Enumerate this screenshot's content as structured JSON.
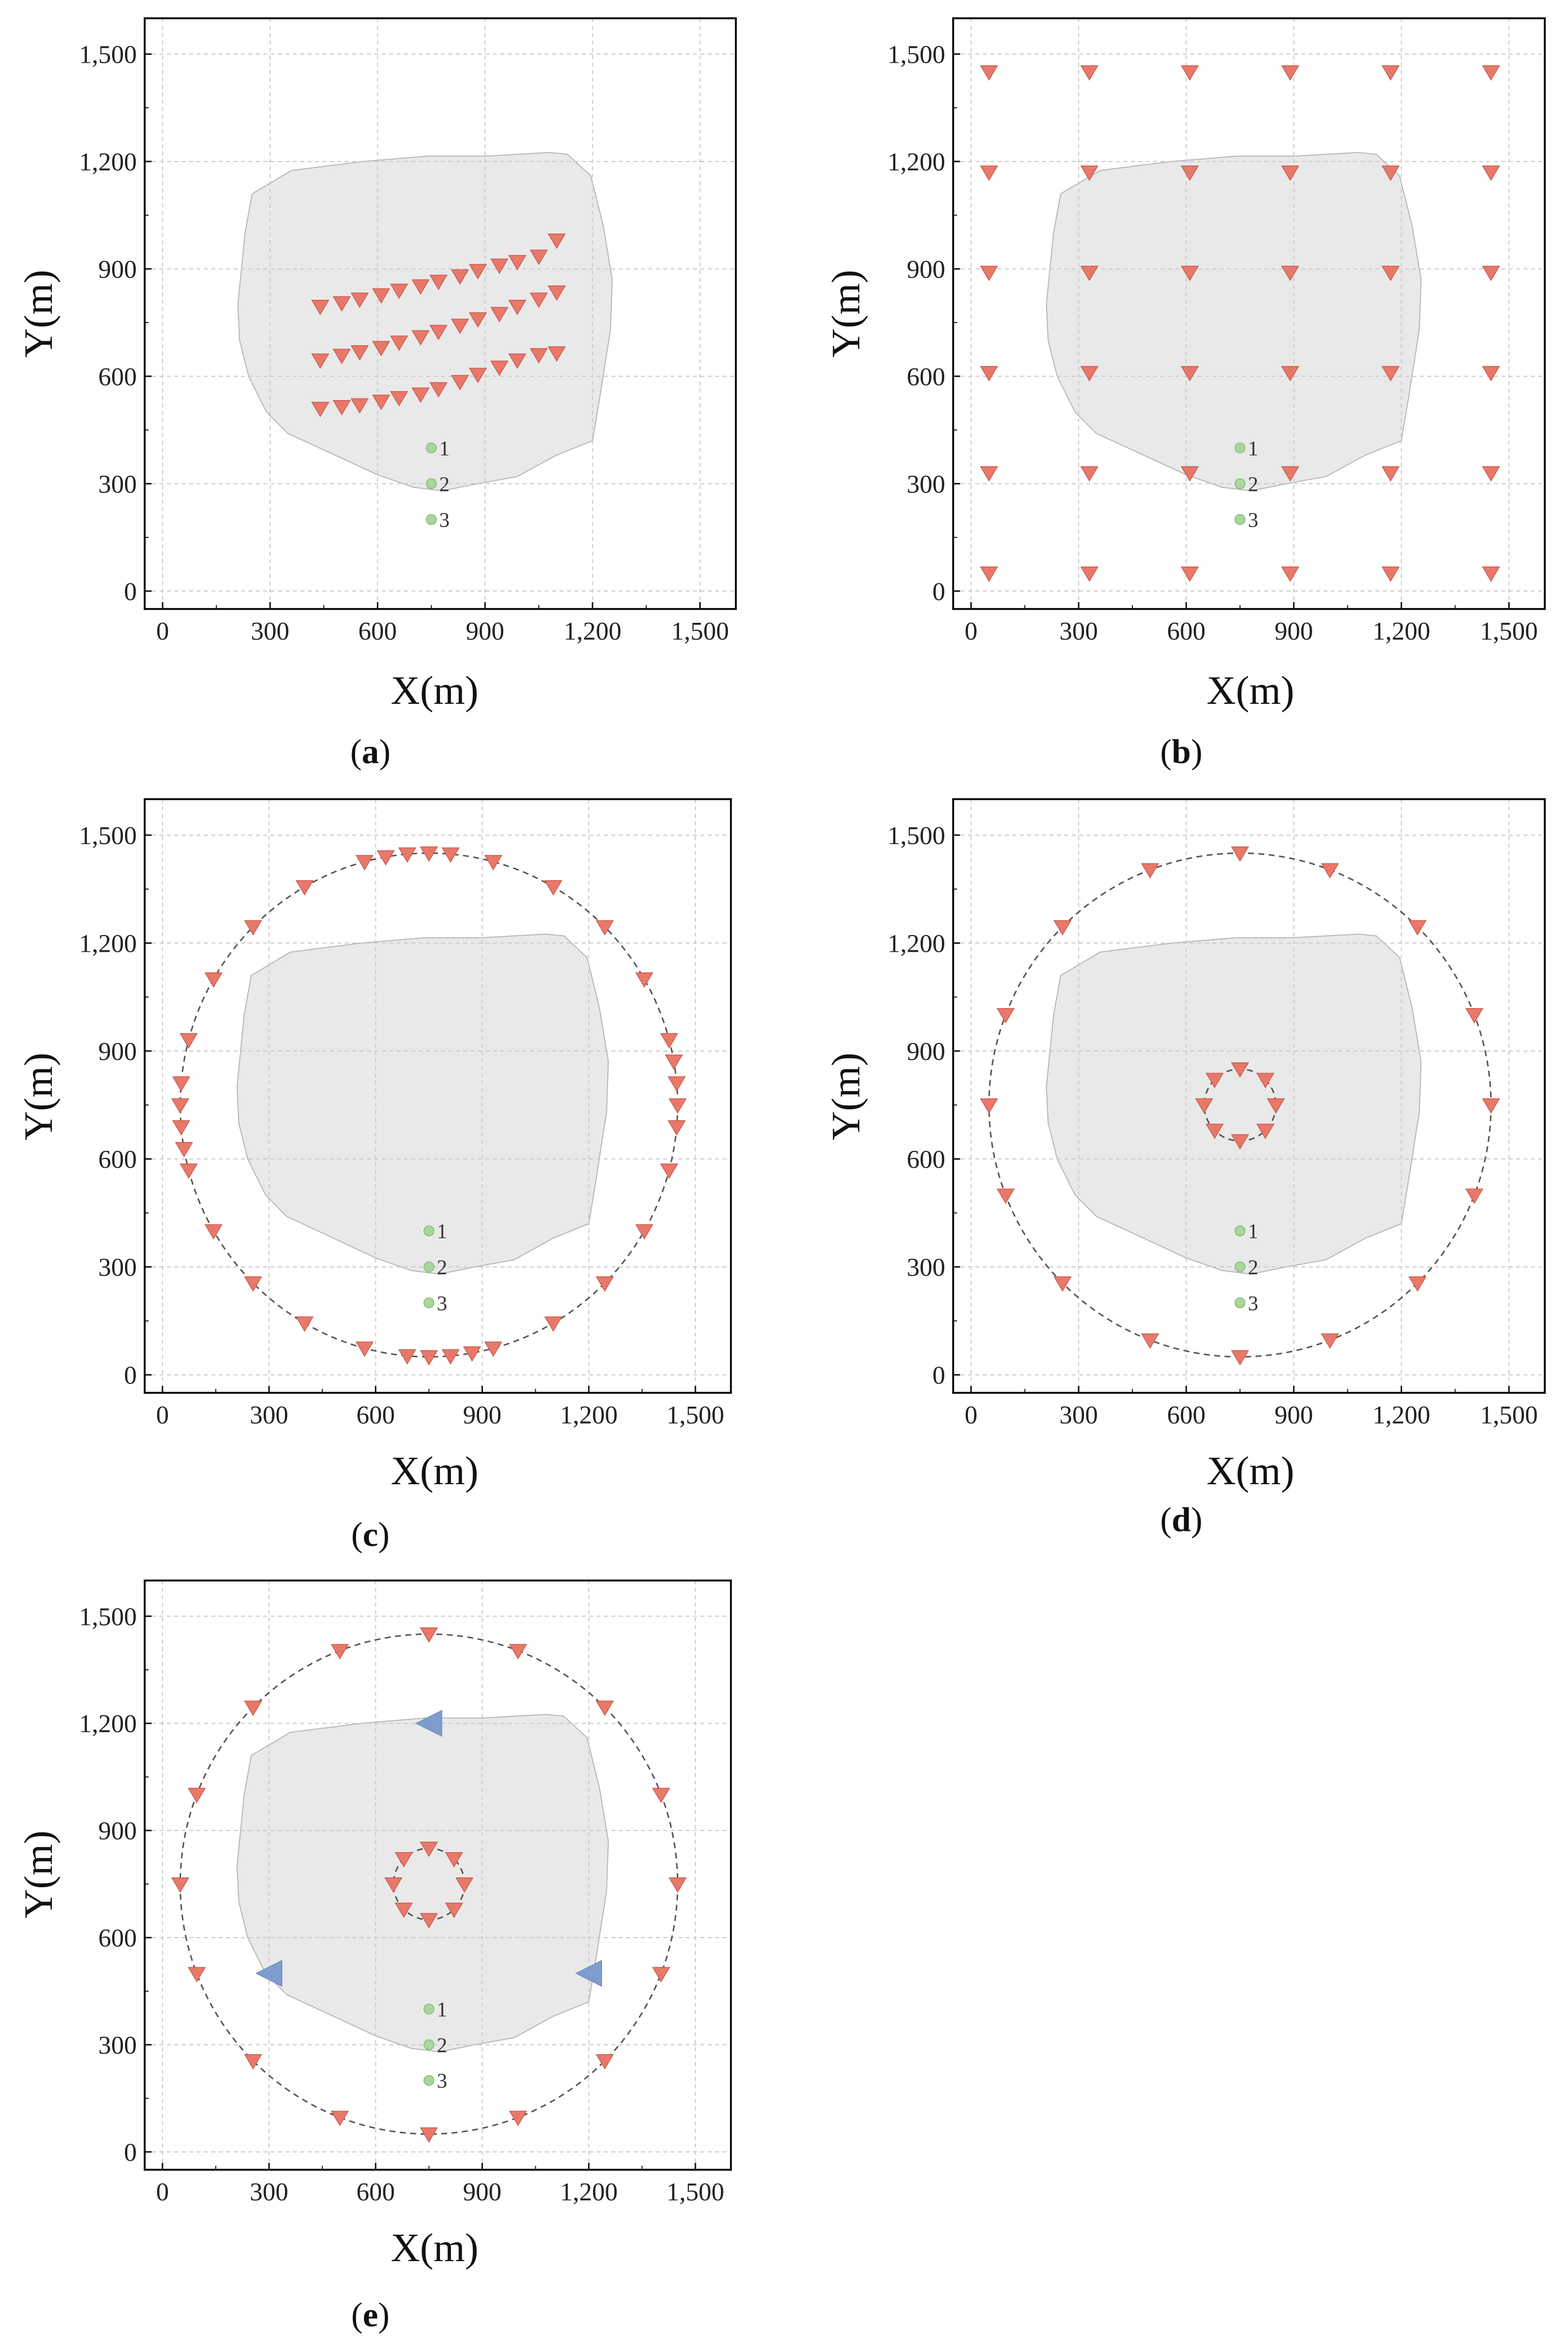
{
  "chart_data": [
    {
      "panel": "a",
      "type": "scatter",
      "xlabel": "X(m)",
      "ylabel": "Y(m)",
      "xlim": [
        -50,
        1600
      ],
      "ylim": [
        -50,
        1600
      ],
      "x_ticks": [
        0,
        300,
        600,
        900,
        1200,
        1500
      ],
      "y_ticks": [
        0,
        300,
        600,
        900,
        1200,
        1500
      ],
      "tick_labels": [
        "0",
        "300",
        "600",
        "900",
        "1,200",
        "1,500"
      ],
      "grid": true,
      "region": [
        [
          230,
          1000
        ],
        [
          250,
          1110
        ],
        [
          360,
          1175
        ],
        [
          560,
          1200
        ],
        [
          740,
          1215
        ],
        [
          900,
          1215
        ],
        [
          1080,
          1225
        ],
        [
          1130,
          1220
        ],
        [
          1195,
          1160
        ],
        [
          1230,
          1020
        ],
        [
          1255,
          870
        ],
        [
          1250,
          730
        ],
        [
          1220,
          540
        ],
        [
          1200,
          420
        ],
        [
          1100,
          380
        ],
        [
          990,
          320
        ],
        [
          880,
          300
        ],
        [
          780,
          280
        ],
        [
          700,
          290
        ],
        [
          600,
          325
        ],
        [
          470,
          385
        ],
        [
          350,
          440
        ],
        [
          290,
          500
        ],
        [
          240,
          600
        ],
        [
          215,
          700
        ],
        [
          210,
          800
        ],
        [
          220,
          900
        ]
      ],
      "receivers": [
        [
          440,
          795
        ],
        [
          500,
          805
        ],
        [
          550,
          815
        ],
        [
          610,
          827
        ],
        [
          660,
          840
        ],
        [
          720,
          852
        ],
        [
          770,
          865
        ],
        [
          830,
          880
        ],
        [
          880,
          895
        ],
        [
          940,
          910
        ],
        [
          990,
          920
        ],
        [
          1050,
          935
        ],
        [
          1100,
          980
        ],
        [
          440,
          645
        ],
        [
          500,
          658
        ],
        [
          550,
          668
        ],
        [
          610,
          680
        ],
        [
          660,
          695
        ],
        [
          720,
          710
        ],
        [
          770,
          725
        ],
        [
          830,
          742
        ],
        [
          880,
          760
        ],
        [
          940,
          775
        ],
        [
          990,
          795
        ],
        [
          1050,
          815
        ],
        [
          1100,
          835
        ],
        [
          440,
          510
        ],
        [
          500,
          515
        ],
        [
          550,
          520
        ],
        [
          610,
          530
        ],
        [
          660,
          540
        ],
        [
          720,
          550
        ],
        [
          770,
          565
        ],
        [
          830,
          585
        ],
        [
          880,
          605
        ],
        [
          940,
          625
        ],
        [
          990,
          645
        ],
        [
          1050,
          660
        ],
        [
          1100,
          665
        ]
      ],
      "stations": [
        {
          "label": "1",
          "x": 750,
          "y": 400
        },
        {
          "label": "2",
          "x": 750,
          "y": 300
        },
        {
          "label": "3",
          "x": 750,
          "y": 200
        }
      ],
      "caption": "a"
    },
    {
      "panel": "b",
      "type": "scatter",
      "xlabel": "X(m)",
      "ylabel": "Y(m)",
      "xlim": [
        -50,
        1600
      ],
      "ylim": [
        -50,
        1600
      ],
      "x_ticks": [
        0,
        300,
        600,
        900,
        1200,
        1500
      ],
      "y_ticks": [
        0,
        300,
        600,
        900,
        1200,
        1500
      ],
      "tick_labels": [
        "0",
        "300",
        "600",
        "900",
        "1,200",
        "1,500"
      ],
      "grid": true,
      "region": [
        [
          230,
          1000
        ],
        [
          250,
          1110
        ],
        [
          360,
          1175
        ],
        [
          560,
          1200
        ],
        [
          740,
          1215
        ],
        [
          900,
          1215
        ],
        [
          1080,
          1225
        ],
        [
          1130,
          1220
        ],
        [
          1195,
          1160
        ],
        [
          1230,
          1020
        ],
        [
          1255,
          870
        ],
        [
          1250,
          730
        ],
        [
          1220,
          540
        ],
        [
          1200,
          420
        ],
        [
          1100,
          380
        ],
        [
          990,
          320
        ],
        [
          880,
          300
        ],
        [
          780,
          280
        ],
        [
          700,
          290
        ],
        [
          600,
          325
        ],
        [
          470,
          385
        ],
        [
          350,
          440
        ],
        [
          290,
          500
        ],
        [
          240,
          600
        ],
        [
          215,
          700
        ],
        [
          210,
          800
        ],
        [
          220,
          900
        ]
      ],
      "receiver_grid_x": [
        50,
        330,
        610,
        890,
        1170,
        1450
      ],
      "receiver_grid_y": [
        50,
        330,
        610,
        890,
        1170,
        1450
      ],
      "stations": [
        {
          "label": "1",
          "x": 750,
          "y": 400
        },
        {
          "label": "2",
          "x": 750,
          "y": 300
        },
        {
          "label": "3",
          "x": 750,
          "y": 200
        }
      ],
      "caption": "b"
    },
    {
      "panel": "c",
      "type": "scatter",
      "xlabel": "X(m)",
      "ylabel": "Y(m)",
      "xlim": [
        -50,
        1600
      ],
      "ylim": [
        -50,
        1600
      ],
      "x_ticks": [
        0,
        300,
        600,
        900,
        1200,
        1500
      ],
      "y_ticks": [
        0,
        300,
        600,
        900,
        1200,
        1500
      ],
      "tick_labels": [
        "0",
        "300",
        "600",
        "900",
        "1,200",
        "1,500"
      ],
      "grid": true,
      "region": [
        [
          230,
          1000
        ],
        [
          250,
          1110
        ],
        [
          360,
          1175
        ],
        [
          560,
          1200
        ],
        [
          740,
          1215
        ],
        [
          900,
          1215
        ],
        [
          1080,
          1225
        ],
        [
          1130,
          1220
        ],
        [
          1195,
          1160
        ],
        [
          1230,
          1020
        ],
        [
          1255,
          870
        ],
        [
          1250,
          730
        ],
        [
          1220,
          540
        ],
        [
          1200,
          420
        ],
        [
          1100,
          380
        ],
        [
          990,
          320
        ],
        [
          880,
          300
        ],
        [
          780,
          280
        ],
        [
          700,
          290
        ],
        [
          600,
          325
        ],
        [
          470,
          385
        ],
        [
          350,
          440
        ],
        [
          290,
          500
        ],
        [
          240,
          600
        ],
        [
          215,
          700
        ],
        [
          210,
          800
        ],
        [
          220,
          900
        ]
      ],
      "circles": [
        {
          "cx": 750,
          "cy": 750,
          "r": 700
        }
      ],
      "ring_receivers": [
        {
          "cx": 750,
          "cy": 750,
          "r": 700,
          "angles_deg": [
            0,
            5,
            10,
            15,
            30,
            45,
            60,
            75,
            85,
            90,
            95,
            100,
            105,
            120,
            135,
            150,
            165,
            175,
            180,
            185,
            190,
            195,
            210,
            225,
            240,
            255,
            265,
            270,
            275,
            280,
            285,
            300,
            315,
            330,
            345,
            355
          ]
        }
      ],
      "stations": [
        {
          "label": "1",
          "x": 750,
          "y": 400
        },
        {
          "label": "2",
          "x": 750,
          "y": 300
        },
        {
          "label": "3",
          "x": 750,
          "y": 200
        }
      ],
      "caption": "c"
    },
    {
      "panel": "d",
      "type": "scatter",
      "xlabel": "X(m)",
      "ylabel": "Y(m)",
      "xlim": [
        -50,
        1600
      ],
      "ylim": [
        -50,
        1600
      ],
      "x_ticks": [
        0,
        300,
        600,
        900,
        1200,
        1500
      ],
      "y_ticks": [
        0,
        300,
        600,
        900,
        1200,
        1500
      ],
      "tick_labels": [
        "0",
        "300",
        "600",
        "900",
        "1,200",
        "1,500"
      ],
      "grid": true,
      "region": [
        [
          230,
          1000
        ],
        [
          250,
          1110
        ],
        [
          360,
          1175
        ],
        [
          560,
          1200
        ],
        [
          740,
          1215
        ],
        [
          900,
          1215
        ],
        [
          1080,
          1225
        ],
        [
          1130,
          1220
        ],
        [
          1195,
          1160
        ],
        [
          1230,
          1020
        ],
        [
          1255,
          870
        ],
        [
          1250,
          730
        ],
        [
          1220,
          540
        ],
        [
          1200,
          420
        ],
        [
          1100,
          380
        ],
        [
          990,
          320
        ],
        [
          880,
          300
        ],
        [
          780,
          280
        ],
        [
          700,
          290
        ],
        [
          600,
          325
        ],
        [
          470,
          385
        ],
        [
          350,
          440
        ],
        [
          290,
          500
        ],
        [
          240,
          600
        ],
        [
          215,
          700
        ],
        [
          210,
          800
        ],
        [
          220,
          900
        ]
      ],
      "circles": [
        {
          "cx": 750,
          "cy": 750,
          "r": 700
        },
        {
          "cx": 750,
          "cy": 750,
          "r": 100
        }
      ],
      "ring_receivers": [
        {
          "cx": 750,
          "cy": 750,
          "r": 700,
          "angles_deg": [
            0,
            21,
            45,
            69,
            90,
            111,
            135,
            159,
            180,
            201,
            225,
            249,
            270,
            291,
            315,
            339
          ]
        },
        {
          "cx": 750,
          "cy": 750,
          "r": 100,
          "angles_deg": [
            0,
            45,
            90,
            135,
            180,
            225,
            270,
            315
          ]
        }
      ],
      "stations": [
        {
          "label": "1",
          "x": 750,
          "y": 400
        },
        {
          "label": "2",
          "x": 750,
          "y": 300
        },
        {
          "label": "3",
          "x": 750,
          "y": 200
        }
      ],
      "caption": "d"
    },
    {
      "panel": "e",
      "type": "scatter",
      "xlabel": "X(m)",
      "ylabel": "Y(m)",
      "xlim": [
        -50,
        1600
      ],
      "ylim": [
        -50,
        1600
      ],
      "x_ticks": [
        0,
        300,
        600,
        900,
        1200,
        1500
      ],
      "y_ticks": [
        0,
        300,
        600,
        900,
        1200,
        1500
      ],
      "tick_labels": [
        "0",
        "300",
        "600",
        "900",
        "1,200",
        "1,500"
      ],
      "grid": true,
      "region": [
        [
          230,
          1000
        ],
        [
          250,
          1110
        ],
        [
          360,
          1175
        ],
        [
          560,
          1200
        ],
        [
          740,
          1215
        ],
        [
          900,
          1215
        ],
        [
          1080,
          1225
        ],
        [
          1130,
          1220
        ],
        [
          1195,
          1160
        ],
        [
          1230,
          1020
        ],
        [
          1255,
          870
        ],
        [
          1250,
          730
        ],
        [
          1220,
          540
        ],
        [
          1200,
          420
        ],
        [
          1100,
          380
        ],
        [
          990,
          320
        ],
        [
          880,
          300
        ],
        [
          780,
          280
        ],
        [
          700,
          290
        ],
        [
          600,
          325
        ],
        [
          470,
          385
        ],
        [
          350,
          440
        ],
        [
          290,
          500
        ],
        [
          240,
          600
        ],
        [
          215,
          700
        ],
        [
          210,
          800
        ],
        [
          220,
          900
        ]
      ],
      "circles": [
        {
          "cx": 750,
          "cy": 750,
          "r": 700
        },
        {
          "cx": 750,
          "cy": 750,
          "r": 100
        }
      ],
      "ring_receivers": [
        {
          "cx": 750,
          "cy": 750,
          "r": 700,
          "angles_deg": [
            0,
            21,
            45,
            69,
            90,
            111,
            135,
            159,
            180,
            201,
            225,
            249,
            270,
            291,
            315,
            339
          ]
        },
        {
          "cx": 750,
          "cy": 750,
          "r": 100,
          "angles_deg": [
            0,
            45,
            90,
            135,
            180,
            225,
            270,
            315
          ]
        }
      ],
      "sources": [
        {
          "x": 750,
          "y": 1200
        },
        {
          "x": 300,
          "y": 500
        },
        {
          "x": 1200,
          "y": 500
        }
      ],
      "stations": [
        {
          "label": "1",
          "x": 750,
          "y": 400
        },
        {
          "label": "2",
          "x": 750,
          "y": 300
        },
        {
          "label": "3",
          "x": 750,
          "y": 200
        }
      ],
      "caption": "e"
    }
  ],
  "colors": {
    "receiver": "#e8786a",
    "receiver_stroke": "#c85a4c",
    "source": "#7f9ccf",
    "region_fill": "#e9e9e9",
    "region_stroke": "#b5b5b5",
    "grid": "#c8c8c8",
    "circle": "#555555",
    "station": "#a9d79b"
  }
}
